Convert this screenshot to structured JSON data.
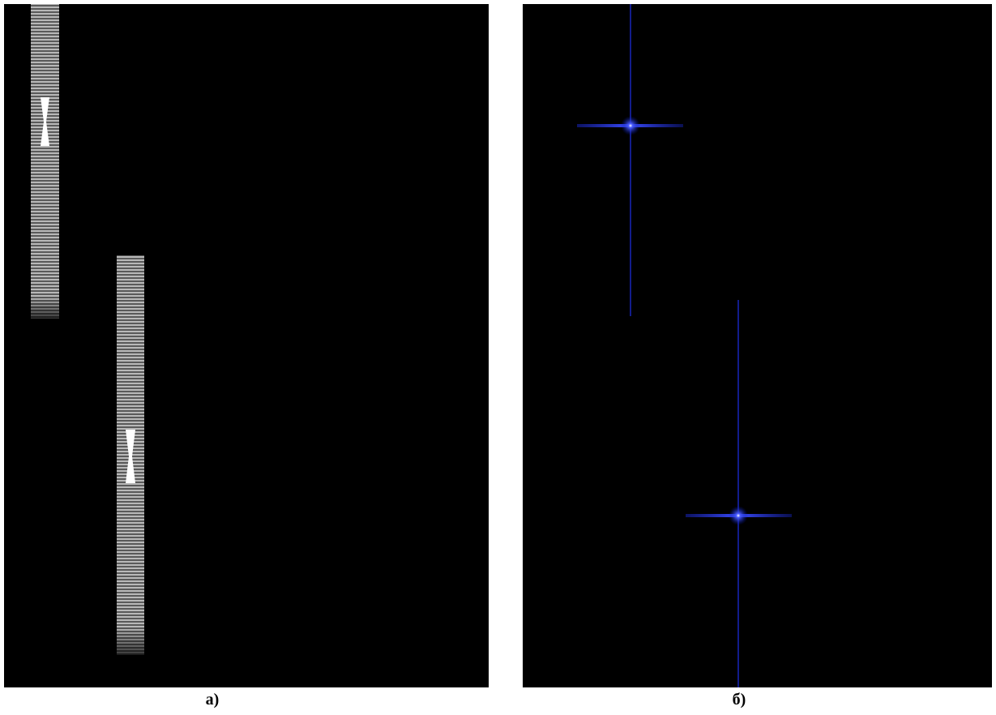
{
  "panels": [
    {
      "label": "а)"
    },
    {
      "label": "б)"
    }
  ]
}
